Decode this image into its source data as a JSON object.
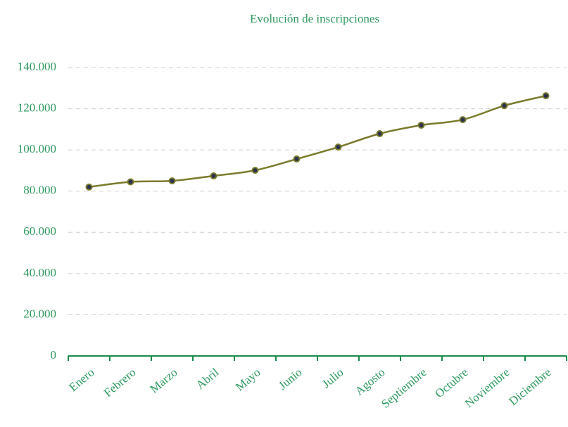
{
  "chart_data": {
    "type": "line",
    "title": "Evolución de inscripciones",
    "categories": [
      "Enero",
      "Febrero",
      "Marzo",
      "Abril",
      "Mayo",
      "Junio",
      "Julio",
      "Agosto",
      "Septiembre",
      "Octubre",
      "Noviembre",
      "Diciembre"
    ],
    "series": [
      {
        "name": "Inscripciones",
        "color": "#7a7a2c",
        "marker_color": "#2b3150",
        "values": [
          82000,
          84500,
          85000,
          87400,
          90100,
          95600,
          101400,
          107900,
          112000,
          114700,
          121500,
          126300
        ]
      }
    ],
    "ylim": [
      0,
      140000
    ],
    "yticks": [
      0,
      {
        "value": 20000,
        "label": "20.000"
      },
      {
        "value": 40000,
        "label": "40.000"
      },
      {
        "value": 60000,
        "label": "60.000"
      },
      {
        "value": 80000,
        "label": "80.000"
      },
      {
        "value": 100000,
        "label": "100.000"
      },
      {
        "value": 120000,
        "label": "120.000"
      },
      {
        "value": 140000,
        "label": "140.000"
      }
    ],
    "grid": true
  }
}
